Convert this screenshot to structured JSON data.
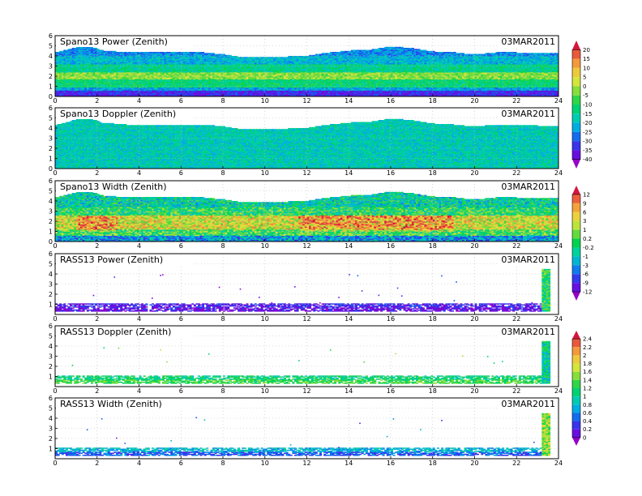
{
  "chart_data": [
    {
      "type": "heatmap",
      "title": "Spano13 Power (Zenith)",
      "date": "03MAR2011",
      "xlim": [
        0,
        24
      ],
      "ylim": [
        0,
        6
      ],
      "xticks": [
        "0",
        "2",
        "4",
        "6",
        "8",
        "10",
        "12",
        "14",
        "16",
        "18",
        "20",
        "22",
        "24"
      ],
      "yticks": [
        "0",
        "1",
        "2",
        "3",
        "4",
        "5",
        "6"
      ],
      "grid": true,
      "colorbar": [
        "20",
        "15",
        "10",
        "5",
        "0",
        "-5",
        "-10",
        "-15",
        "-20",
        "-25",
        "-30",
        "-35",
        "-40"
      ],
      "coverage": "continuous",
      "top_height_profile": [
        [
          0,
          4.3
        ],
        [
          1,
          4.8
        ],
        [
          1.6,
          4.9
        ],
        [
          2.2,
          4.5
        ],
        [
          2.8,
          4.4
        ],
        [
          3.4,
          4.3
        ],
        [
          4,
          4.3
        ],
        [
          5,
          4.3
        ],
        [
          6,
          4.3
        ],
        [
          7,
          4.3
        ],
        [
          8,
          4.1
        ],
        [
          8.6,
          3.9
        ],
        [
          9.6,
          3.9
        ],
        [
          11,
          3.9
        ],
        [
          12,
          4.0
        ],
        [
          13,
          4.3
        ],
        [
          14,
          4.5
        ],
        [
          15,
          4.6
        ],
        [
          16,
          4.9
        ],
        [
          17,
          4.7
        ],
        [
          18,
          4.4
        ],
        [
          19,
          4.3
        ],
        [
          20,
          4.1
        ],
        [
          21,
          4.3
        ],
        [
          22,
          4.3
        ],
        [
          23,
          4.2
        ],
        [
          24,
          4.2
        ]
      ],
      "layers": [
        {
          "y0": 0.0,
          "y1": 0.6,
          "value": -32
        },
        {
          "y0": 0.6,
          "y1": 0.9,
          "value": -22
        },
        {
          "y0": 0.9,
          "y1": 1.7,
          "value": -12
        },
        {
          "y0": 1.7,
          "y1": 2.4,
          "value": -3
        },
        {
          "y0": 2.4,
          "y1": 3.2,
          "value": -14
        },
        {
          "y0": 3.2,
          "y1": 4.0,
          "value": -20
        },
        {
          "y0": 4.0,
          "y1": 5.0,
          "value": -24
        }
      ]
    },
    {
      "type": "heatmap",
      "title": "Spano13 Doppler (Zenith)",
      "date": "03MAR2011",
      "xlim": [
        0,
        24
      ],
      "ylim": [
        0,
        6
      ],
      "xticks": [
        "0",
        "2",
        "4",
        "6",
        "8",
        "10",
        "12",
        "14",
        "16",
        "18",
        "20",
        "22",
        "24"
      ],
      "yticks": [
        "0",
        "1",
        "2",
        "3",
        "4",
        "5",
        "6"
      ],
      "grid": true,
      "coverage": "continuous",
      "top_height_profile": [
        [
          0,
          4.3
        ],
        [
          1,
          4.8
        ],
        [
          1.6,
          4.9
        ],
        [
          2.2,
          4.5
        ],
        [
          2.8,
          4.4
        ],
        [
          3.4,
          4.3
        ],
        [
          4,
          4.3
        ],
        [
          5,
          4.3
        ],
        [
          6,
          4.3
        ],
        [
          7,
          4.3
        ],
        [
          8,
          4.1
        ],
        [
          8.6,
          3.9
        ],
        [
          9.6,
          3.9
        ],
        [
          11,
          3.9
        ],
        [
          12,
          4.0
        ],
        [
          13,
          4.3
        ],
        [
          14,
          4.5
        ],
        [
          15,
          4.6
        ],
        [
          16,
          4.9
        ],
        [
          17,
          4.7
        ],
        [
          18,
          4.4
        ],
        [
          19,
          4.3
        ],
        [
          20,
          4.1
        ],
        [
          21,
          4.3
        ],
        [
          22,
          4.3
        ],
        [
          23,
          4.2
        ],
        [
          24,
          4.2
        ]
      ],
      "layers": [
        {
          "y0": 0.0,
          "y1": 5.0,
          "value": -17
        }
      ]
    },
    {
      "type": "heatmap",
      "title": "Spano13 Width (Zenith)",
      "date": "03MAR2011",
      "xlim": [
        0,
        24
      ],
      "ylim": [
        0,
        6
      ],
      "xticks": [
        "0",
        "2",
        "4",
        "6",
        "8",
        "10",
        "12",
        "14",
        "16",
        "18",
        "20",
        "22",
        "24"
      ],
      "yticks": [
        "0",
        "1",
        "2",
        "3",
        "4",
        "5",
        "6"
      ],
      "grid": true,
      "colorbar": [
        "12",
        "9",
        "6",
        "3",
        "1",
        "0.2",
        "-0.2",
        "-1",
        "-3",
        "-6",
        "-9",
        "-12"
      ],
      "coverage": "continuous",
      "top_height_profile": [
        [
          0,
          4.3
        ],
        [
          1,
          4.8
        ],
        [
          1.6,
          4.9
        ],
        [
          2.2,
          4.5
        ],
        [
          2.8,
          4.4
        ],
        [
          3.4,
          4.3
        ],
        [
          4,
          4.3
        ],
        [
          5,
          4.3
        ],
        [
          6,
          4.3
        ],
        [
          7,
          4.3
        ],
        [
          8,
          4.1
        ],
        [
          8.6,
          3.9
        ],
        [
          9.6,
          3.9
        ],
        [
          11,
          3.9
        ],
        [
          12,
          4.0
        ],
        [
          13,
          4.3
        ],
        [
          14,
          4.5
        ],
        [
          15,
          4.6
        ],
        [
          16,
          4.9
        ],
        [
          17,
          4.7
        ],
        [
          18,
          4.4
        ],
        [
          19,
          4.3
        ],
        [
          20,
          4.1
        ],
        [
          21,
          4.3
        ],
        [
          22,
          4.3
        ],
        [
          23,
          4.2
        ],
        [
          24,
          4.2
        ]
      ],
      "layers": [
        {
          "y0": 0.0,
          "y1": 0.6,
          "value": -5
        },
        {
          "y0": 0.6,
          "y1": 1.2,
          "value": 1
        },
        {
          "y0": 1.2,
          "y1": 2.6,
          "value": 5
        },
        {
          "y0": 2.6,
          "y1": 3.4,
          "value": 0
        },
        {
          "y0": 3.4,
          "y1": 5.0,
          "value": -2
        }
      ]
    },
    {
      "type": "heatmap",
      "title": "RASS13 Power (Zenith)",
      "date": "03MAR2011",
      "xlim": [
        0,
        24
      ],
      "ylim": [
        0,
        6
      ],
      "xticks": [
        "0",
        "2",
        "4",
        "6",
        "8",
        "10",
        "12",
        "14",
        "16",
        "18",
        "20",
        "22",
        "24"
      ],
      "yticks": [
        "1",
        "2",
        "3",
        "4",
        "5",
        "6"
      ],
      "grid": true,
      "coverage": "band",
      "layers": [
        {
          "y0": 0.3,
          "y1": 0.7,
          "value": -10
        },
        {
          "y0": 0.7,
          "y1": 1.0,
          "value": -9
        }
      ],
      "column": {
        "x0": 23.2,
        "x1": 23.6,
        "y0": 0.3,
        "y1": 4.5,
        "value": 0
      }
    },
    {
      "type": "heatmap",
      "title": "RASS13 Doppler (Zenith)",
      "date": "03MAR2011",
      "xlim": [
        0,
        24
      ],
      "ylim": [
        0,
        6
      ],
      "xticks": [
        "0",
        "2",
        "4",
        "6",
        "8",
        "10",
        "12",
        "14",
        "16",
        "18",
        "20",
        "22",
        "24"
      ],
      "yticks": [
        "1",
        "2",
        "3",
        "4",
        "5",
        "6"
      ],
      "grid": true,
      "colorbar": [
        "2.4",
        "2.2",
        "2",
        "1.8",
        "1.6",
        "1.4",
        "1.2",
        "1",
        "0.8",
        "0.6",
        "0.4",
        "0.2",
        "0"
      ],
      "coverage": "band",
      "layers": [
        {
          "y0": 0.3,
          "y1": 0.7,
          "value": 1.3
        },
        {
          "y0": 0.7,
          "y1": 1.0,
          "value": 1.1
        }
      ],
      "column": {
        "x0": 23.2,
        "x1": 23.6,
        "y0": 0.3,
        "y1": 4.5,
        "value": 1.0
      }
    },
    {
      "type": "heatmap",
      "title": "RASS13 Width (Zenith)",
      "date": "03MAR2011",
      "xlim": [
        0,
        24
      ],
      "ylim": [
        0,
        6
      ],
      "xticks": [
        "0",
        "2",
        "4",
        "6",
        "8",
        "10",
        "12",
        "14",
        "16",
        "18",
        "20",
        "22",
        "24"
      ],
      "yticks": [
        "1",
        "2",
        "3",
        "4",
        "5",
        "6"
      ],
      "grid": true,
      "coverage": "band",
      "layers": [
        {
          "y0": 0.3,
          "y1": 0.7,
          "value": 0.5
        },
        {
          "y0": 0.7,
          "y1": 1.0,
          "value": 0.8
        }
      ],
      "column": {
        "x0": 23.2,
        "x1": 23.6,
        "y0": 0.3,
        "y1": 4.5,
        "value": 1.5
      }
    }
  ]
}
